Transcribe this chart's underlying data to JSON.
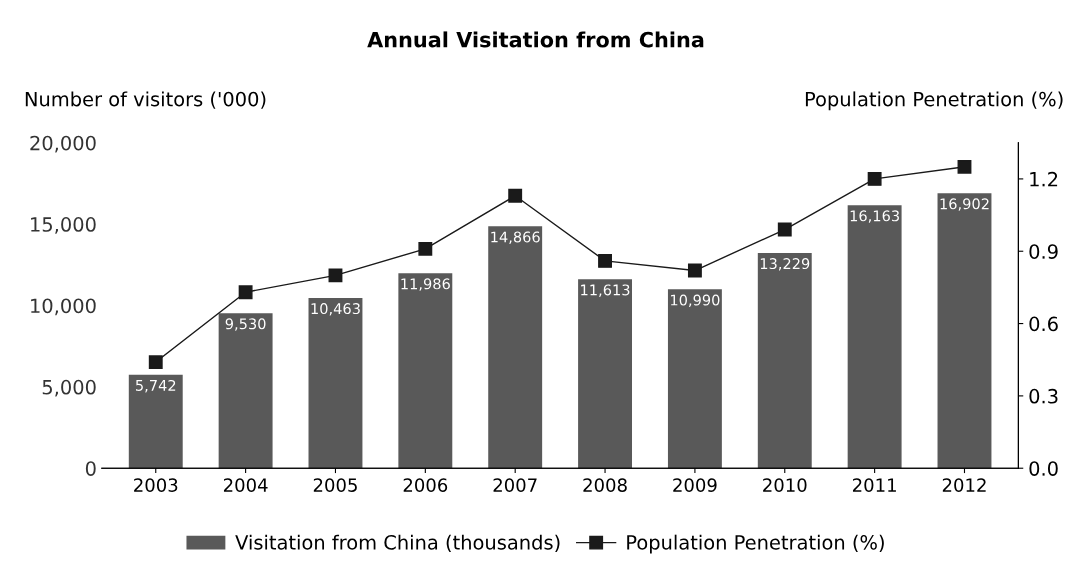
{
  "chart_data": {
    "type": "bar",
    "title": "Annual Visitation from China",
    "ylabel": "Number of visitors ('000)",
    "y2label": "Population Penetration (%)",
    "categories": [
      "2003",
      "2004",
      "2005",
      "2006",
      "2007",
      "2008",
      "2009",
      "2010",
      "2011",
      "2012"
    ],
    "series": [
      {
        "name": "Visitation from China (thousands)",
        "color": "#595959",
        "values": [
          5742,
          9530,
          10463,
          11986,
          14866,
          11613,
          10990,
          13229,
          16163,
          16902
        ],
        "value_labels": [
          "5,742",
          "9,530",
          "10,463",
          "11,986",
          "14,866",
          "11,613",
          "10,990",
          "13,229",
          "16,163",
          "16,902"
        ]
      },
      {
        "name": "Population Penetration (%)",
        "type": "line",
        "axis": "y2",
        "color": "#1a1a1a",
        "marker": "square",
        "line_style": "solid",
        "values": [
          0.44,
          0.73,
          0.8,
          0.91,
          1.13,
          0.86,
          0.82,
          0.99,
          1.2,
          1.25
        ]
      }
    ],
    "ylim": [
      0,
      20000
    ],
    "yticks": [
      {
        "value": 0,
        "label": "0"
      },
      {
        "value": 5000,
        "label": "5,000"
      },
      {
        "value": 10000,
        "label": "10,000"
      },
      {
        "value": 15000,
        "label": "15,000"
      },
      {
        "value": 20000,
        "label": "20,000"
      }
    ],
    "y2lim": [
      0,
      1.35
    ],
    "y2ticks": [
      {
        "value": 0,
        "label": "0.0"
      },
      {
        "value": 0.3,
        "label": "0.3"
      },
      {
        "value": 0.6,
        "label": "0.6"
      },
      {
        "value": 0.9,
        "label": "0.9"
      },
      {
        "value": 1.2,
        "label": "1.2"
      }
    ],
    "grid": false,
    "legend": "bottom"
  }
}
